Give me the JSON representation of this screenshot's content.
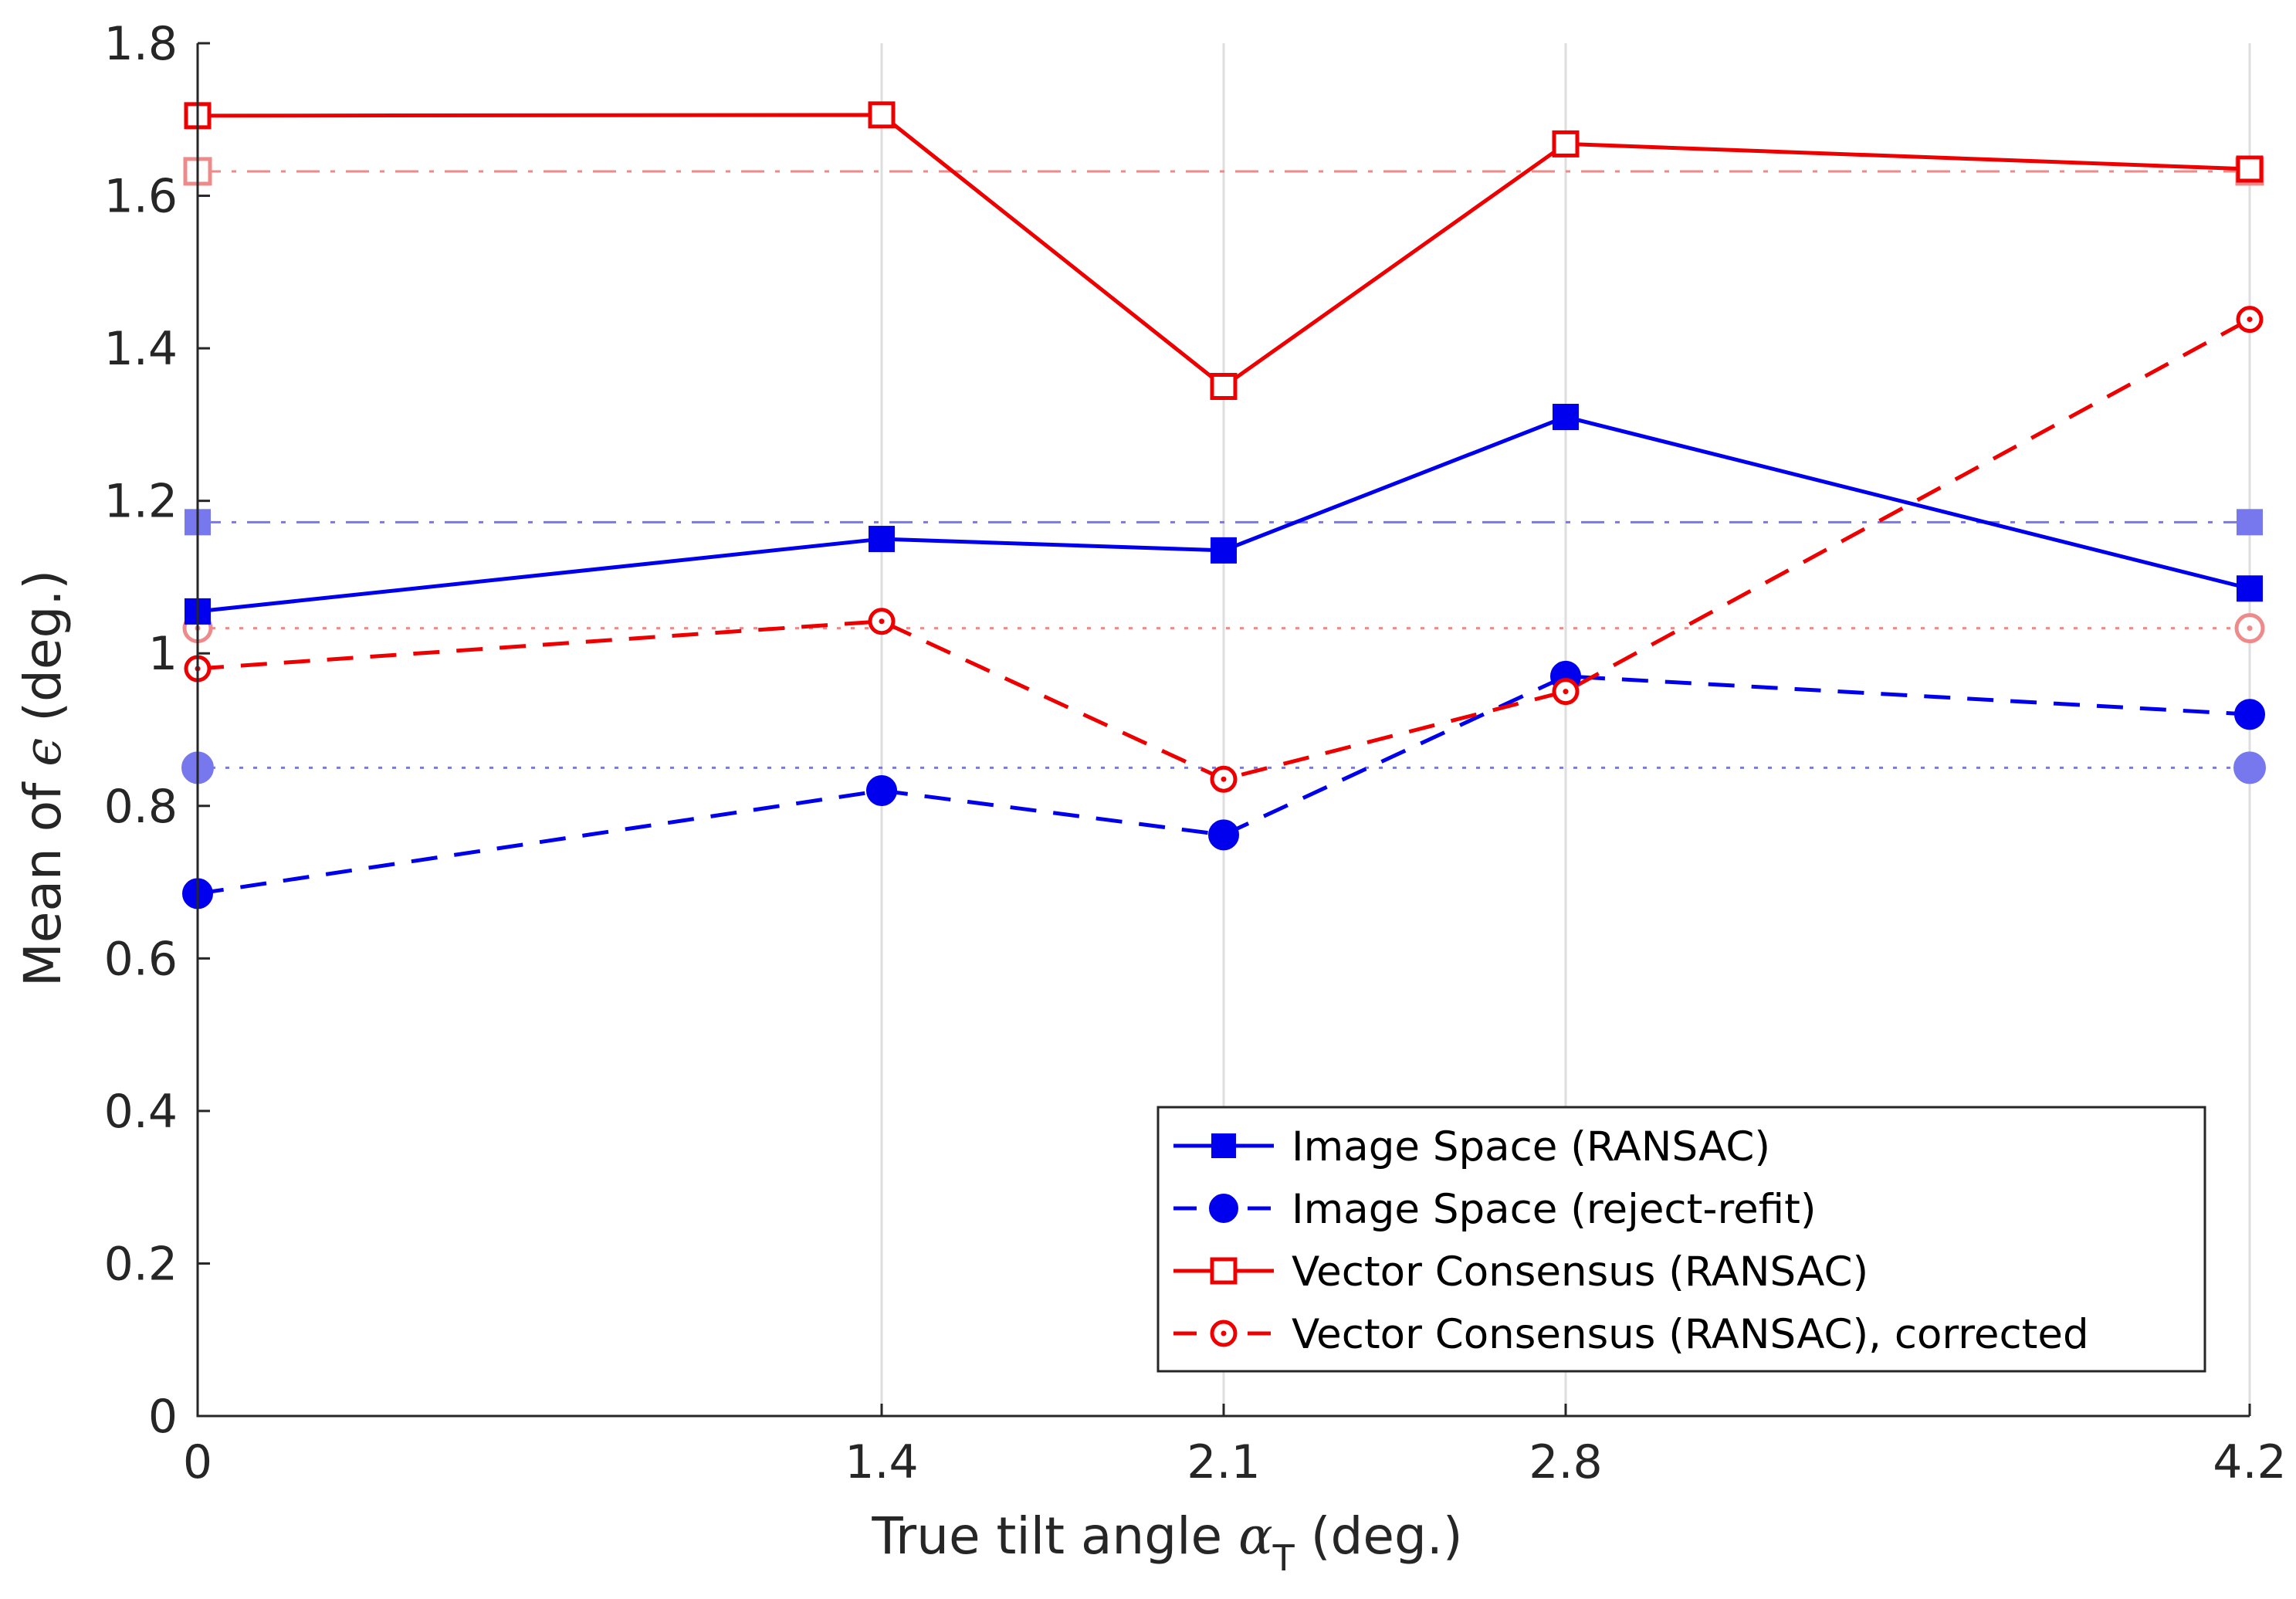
{
  "chart_data": {
    "type": "line",
    "xlabel": {
      "main": "True tilt angle ",
      "symbol": "α",
      "subscript": "T",
      "suffix": " (deg.)"
    },
    "ylabel": {
      "prefix": "Mean of ",
      "symbol": "ϵ",
      "suffix": " (deg.)"
    },
    "xlim": [
      0,
      4.2
    ],
    "ylim": [
      0,
      1.8
    ],
    "x": [
      0,
      1.4,
      2.1,
      2.8,
      4.2
    ],
    "x_tick_labels": [
      "0",
      "1.4",
      "2.1",
      "2.8",
      "4.2"
    ],
    "y_ticks": [
      0,
      0.2,
      0.4,
      0.6,
      0.8,
      1,
      1.2,
      1.4,
      1.6,
      1.8
    ],
    "y_tick_labels": [
      "0",
      "0.2",
      "0.4",
      "0.6",
      "0.8",
      "1",
      "1.2",
      "1.4",
      "1.6",
      "1.8"
    ],
    "vertical_gridlines": true,
    "legend_position": "bottom-right",
    "series": [
      {
        "name": "Image Space (RANSAC)",
        "values": [
          1.055,
          1.15,
          1.135,
          1.31,
          1.085
        ],
        "color": "#0000ee",
        "style": "solid",
        "marker": "square-filled"
      },
      {
        "name": "Image Space (reject-refit)",
        "values": [
          0.685,
          0.82,
          0.762,
          0.97,
          0.92
        ],
        "color": "#0000ee",
        "style": "dashed",
        "marker": "circle-filled"
      },
      {
        "name": "Vector Consensus (RANSAC)",
        "values": [
          1.705,
          1.706,
          1.35,
          1.668,
          1.635
        ],
        "color": "#ee0000",
        "style": "solid",
        "marker": "square-open"
      },
      {
        "name": "Vector Consensus (RANSAC), corrected",
        "values": [
          0.98,
          1.042,
          0.835,
          0.95,
          1.438
        ],
        "color": "#ee0000",
        "style": "dashed",
        "marker": "circle-open"
      }
    ],
    "reference_lines": [
      {
        "series": "Image Space (RANSAC)",
        "value": 1.172,
        "color": "#7878ee",
        "style": "dashdot",
        "marker": "square-filled"
      },
      {
        "series": "Image Space (reject-refit)",
        "value": 0.85,
        "color": "#7878ee",
        "style": "dotted",
        "marker": "circle-filled"
      },
      {
        "series": "Vector Consensus (RANSAC)",
        "value": 1.632,
        "color": "#ee8a8a",
        "style": "dashdot",
        "marker": "square-open"
      },
      {
        "series": "Vector Consensus (RANSAC), corrected",
        "value": 1.033,
        "color": "#ee8a8a",
        "style": "dotted",
        "marker": "circle-open"
      }
    ]
  }
}
